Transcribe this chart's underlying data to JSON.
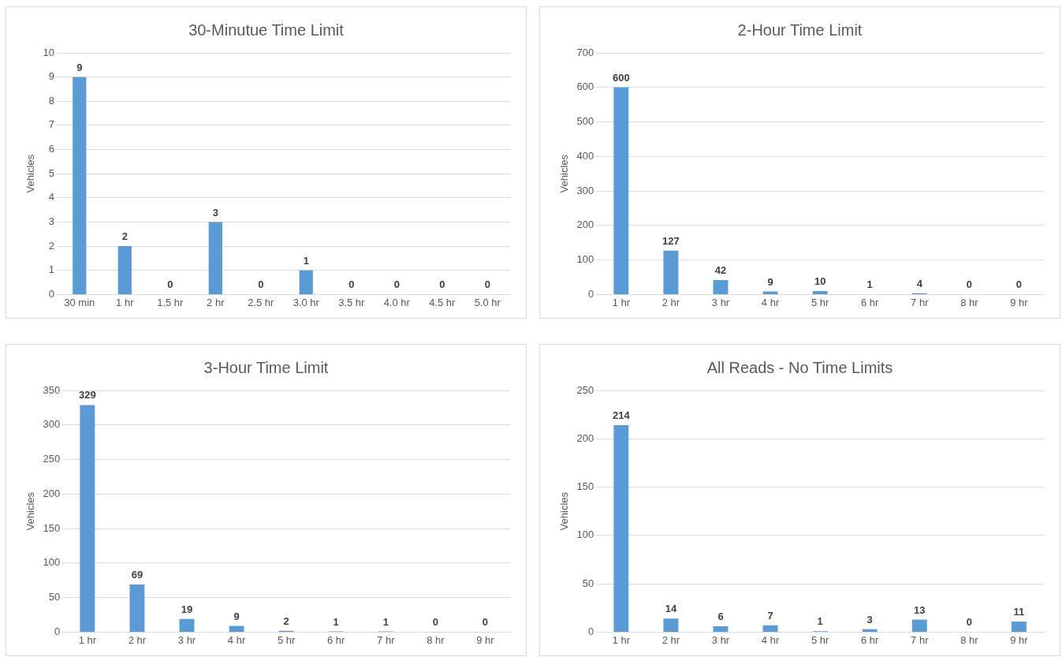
{
  "chart_data": [
    {
      "type": "bar",
      "title": "30-Minutue Time Limit",
      "ylabel": "Vehicles",
      "categories": [
        "30 min",
        "1 hr",
        "1.5 hr",
        "2 hr",
        "2.5 hr",
        "3.0 hr",
        "3.5 hr",
        "4.0 hr",
        "4.5 hr",
        "5.0 hr"
      ],
      "values": [
        9,
        2,
        0,
        3,
        0,
        1,
        0,
        0,
        0,
        0
      ],
      "color": "#5b9bd5",
      "ylim": [
        0,
        10
      ],
      "yticks": [
        0,
        1,
        2,
        3,
        4,
        5,
        6,
        7,
        8,
        9,
        10
      ],
      "grid": "y",
      "data_labels": true
    },
    {
      "type": "bar",
      "title": "2-Hour Time Limit",
      "ylabel": "Vehicles",
      "categories": [
        "1 hr",
        "2 hr",
        "3 hr",
        "4 hr",
        "5 hr",
        "6 hr",
        "7 hr",
        "8 hr",
        "9 hr"
      ],
      "values": [
        600,
        127,
        42,
        9,
        10,
        1,
        4,
        0,
        0
      ],
      "color": "#5b9bd5",
      "ylim": [
        0,
        700
      ],
      "yticks": [
        0,
        100,
        200,
        300,
        400,
        500,
        600,
        700
      ],
      "grid": "y",
      "data_labels": true
    },
    {
      "type": "bar",
      "title": "3-Hour Time Limit",
      "ylabel": "Vehicles",
      "categories": [
        "1 hr",
        "2 hr",
        "3 hr",
        "4 hr",
        "5 hr",
        "6 hr",
        "7 hr",
        "8 hr",
        "9 hr"
      ],
      "values": [
        329,
        69,
        19,
        9,
        2,
        1,
        1,
        0,
        0
      ],
      "color": "#5b9bd5",
      "ylim": [
        0,
        350
      ],
      "yticks": [
        0,
        50,
        100,
        150,
        200,
        250,
        300,
        350
      ],
      "grid": "y",
      "data_labels": true
    },
    {
      "type": "bar",
      "title": "All Reads - No Time Limits",
      "ylabel": "Vehicles",
      "categories": [
        "1 hr",
        "2 hr",
        "3 hr",
        "4 hr",
        "5 hr",
        "6 hr",
        "7 hr",
        "8 hr",
        "9 hr"
      ],
      "values": [
        214,
        14,
        6,
        7,
        1,
        3,
        13,
        0,
        11
      ],
      "color": "#5b9bd5",
      "ylim": [
        0,
        250
      ],
      "yticks": [
        0,
        50,
        100,
        150,
        200,
        250
      ],
      "grid": "y",
      "data_labels": true
    }
  ]
}
